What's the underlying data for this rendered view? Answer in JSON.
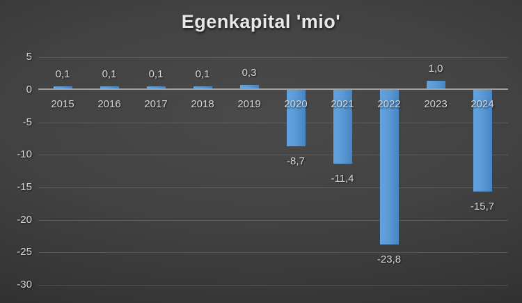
{
  "title": "Egenkapital 'mio'",
  "colors": {
    "background_center": "#4a4a4a",
    "background_edge": "#242424",
    "bar_fill": "#5b9bd5",
    "zero_axis_line": "#a3a3a3",
    "gridline": "rgba(220,220,220,0.17)",
    "tick_label": "#d6d6d6",
    "data_label": "#d9d9d9",
    "title_text": "#e8e8e8"
  },
  "chart_data": {
    "type": "bar",
    "title": "Egenkapital 'mio'",
    "categories": [
      "2015",
      "2016",
      "2017",
      "2018",
      "2019",
      "2020",
      "2021",
      "2022",
      "2023",
      "2024"
    ],
    "values": [
      0.1,
      0.1,
      0.1,
      0.1,
      0.3,
      -8.7,
      -11.4,
      -23.8,
      1.0,
      -15.7
    ],
    "value_labels": [
      "0,1",
      "0,1",
      "0,1",
      "0,1",
      "0,3",
      "-8,7",
      "-11,4",
      "-23,8",
      "1,0",
      "-15,7"
    ],
    "series_name": "Egenkapital",
    "xlabel": "",
    "ylabel": "",
    "y_ticks": [
      5,
      0,
      -5,
      -10,
      -15,
      -20,
      -25,
      -30
    ],
    "y_tick_labels": [
      "5",
      "0",
      "-5",
      "-10",
      "-15",
      "-20",
      "-25",
      "-30"
    ],
    "ylim": [
      -30,
      5
    ],
    "grid": true,
    "legend": false,
    "decimal_separator": ",",
    "data_label_position": "outside-end"
  }
}
